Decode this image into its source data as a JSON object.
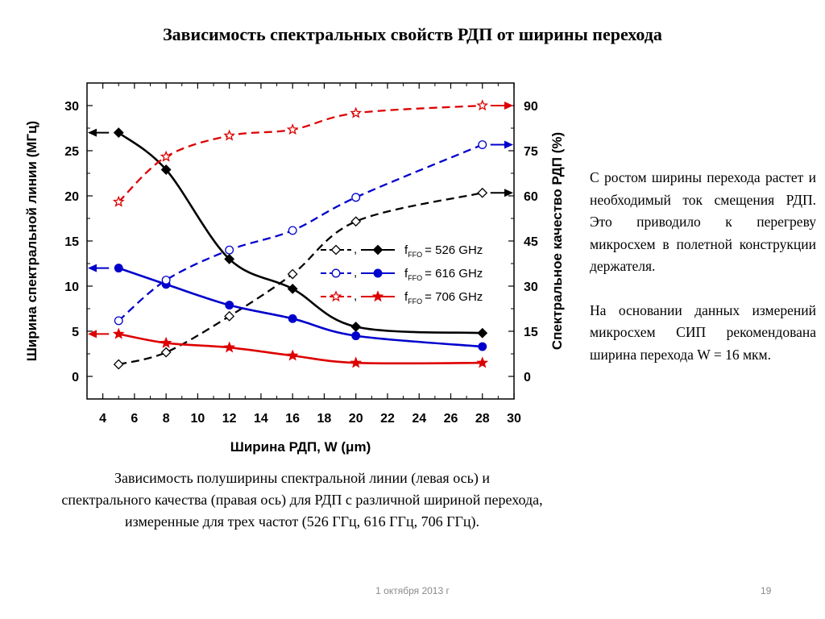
{
  "slide": {
    "title": "Зависимость спектральных свойств РДП от ширины перехода",
    "paragraphs": [
      "С ростом ширины перехода растет и необходимый ток смещения РДП. Это приводило к перегреву микросхем в полетной конструкции держателя.",
      "На основании данных измерений микросхем СИП рекомендована ширина перехода  W = 16 мкм."
    ],
    "caption": [
      "Зависимость полуширины спектральной линии (левая ось) и",
      "спектрального качества (правая ось) для РДП с различной шириной перехода,",
      "измеренные для трех частот (526 ГГц, 616 ГГц, 706 ГГц)."
    ],
    "date": "1 октября 2013 г",
    "page_number": "19"
  },
  "chart_data": {
    "type": "line",
    "xlabel": "Ширина РДП, W (μm)",
    "ylabel_left": "Ширина спектральной линии (МГц)",
    "ylabel_right": "Спектральное качество РДП (%)",
    "xlim": [
      3,
      30
    ],
    "ylim_left": [
      -2.5,
      32.5
    ],
    "ylim_right": [
      -7.5,
      97.5
    ],
    "x_ticks": [
      4,
      6,
      8,
      10,
      12,
      14,
      16,
      18,
      20,
      22,
      24,
      26,
      28,
      30
    ],
    "y_ticks_left": [
      0,
      5,
      10,
      15,
      20,
      25,
      30
    ],
    "y_ticks_right": [
      0,
      15,
      30,
      45,
      60,
      75,
      90
    ],
    "legend_position": "right-middle",
    "series": [
      {
        "name": "526 GHz",
        "color": "#000000",
        "marker_linewidth": "diamond",
        "marker_quality": "open-diamond",
        "linewidth_x": [
          5,
          8,
          12,
          16,
          20,
          28
        ],
        "linewidth_y": [
          27.0,
          22.9,
          13.0,
          9.7,
          5.5,
          4.8
        ],
        "quality_x": [
          5,
          8,
          12,
          16,
          20,
          28
        ],
        "quality_y": [
          4.0,
          8.0,
          20.0,
          34.0,
          51.5,
          61.0
        ]
      },
      {
        "name": "616 GHz",
        "color": "#0000cc",
        "marker_linewidth": "circle",
        "marker_quality": "open-circle",
        "linewidth_x": [
          5,
          8,
          12,
          16,
          20,
          28
        ],
        "linewidth_y": [
          12.0,
          10.2,
          7.9,
          6.4,
          4.5,
          3.3
        ],
        "quality_x": [
          5,
          8,
          12,
          16,
          20,
          28
        ],
        "quality_y": [
          18.5,
          32.0,
          42.0,
          48.5,
          59.5,
          77.0
        ]
      },
      {
        "name": "706 GHz",
        "color": "#dd0000",
        "marker_linewidth": "star",
        "marker_quality": "open-star",
        "linewidth_x": [
          5,
          8,
          12,
          16,
          20,
          28
        ],
        "linewidth_y": [
          4.7,
          3.7,
          3.2,
          2.3,
          1.5,
          1.5
        ],
        "quality_x": [
          5,
          8,
          12,
          16,
          20,
          28
        ],
        "quality_y": [
          58.0,
          73.0,
          80.0,
          82.0,
          87.5,
          90.0
        ]
      }
    ],
    "legend_labels": [
      {
        "prefix": ",",
        "sub": "FFO",
        "value": "= 526 GHz"
      },
      {
        "prefix": ",",
        "sub": "FFO",
        "value": "= 616 GHz"
      },
      {
        "prefix": ",",
        "sub": "FFO",
        "value": "= 706 GHz"
      }
    ]
  }
}
